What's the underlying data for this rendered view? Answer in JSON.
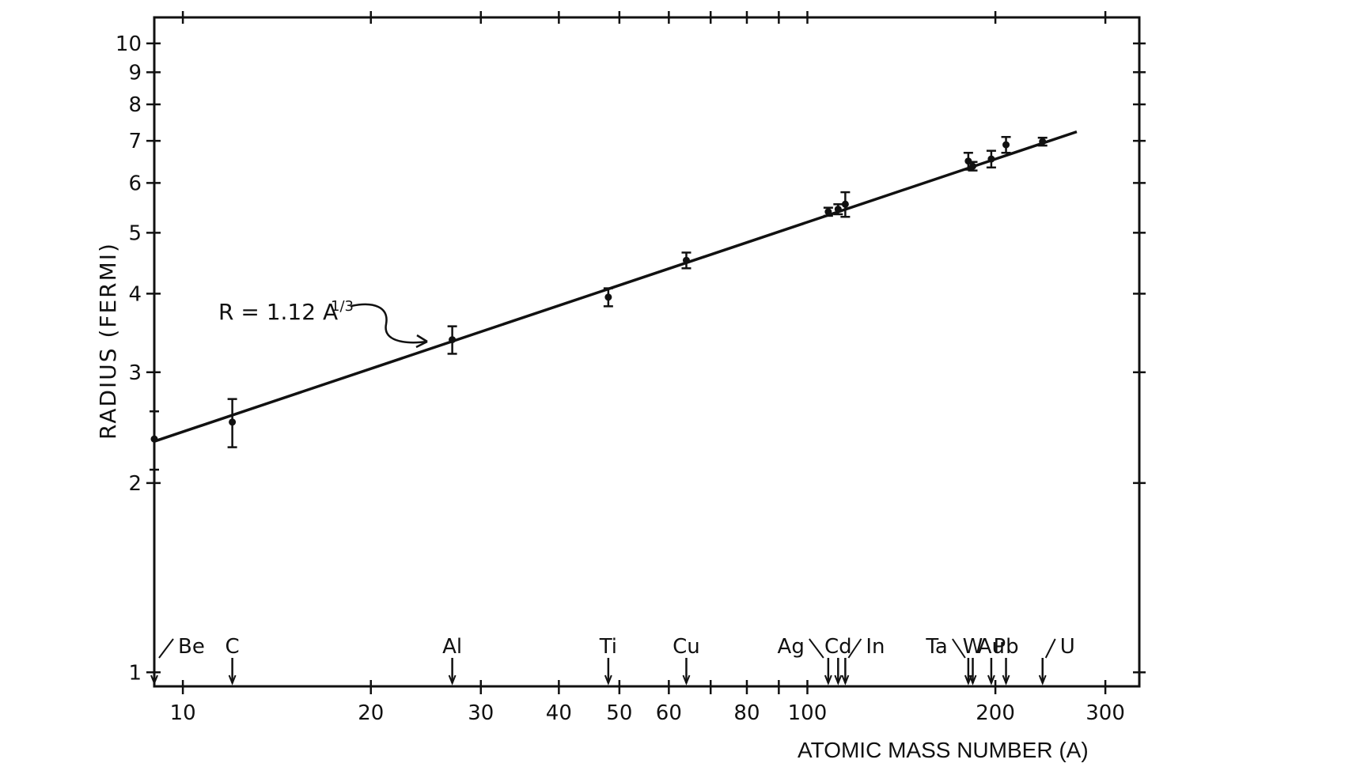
{
  "chart_data": {
    "type": "scatter",
    "xlabel": "ATOMIC MASS NUMBER (A)",
    "ylabel": "RADIUS (FERMI)",
    "x_scale": "log",
    "y_scale": "log",
    "xlim": [
      9,
      340
    ],
    "ylim": [
      0.95,
      11
    ],
    "x_ticks": [
      10,
      20,
      30,
      40,
      50,
      60,
      80,
      100,
      200,
      300
    ],
    "x_minor_ticks": [
      70,
      90
    ],
    "y_ticks": [
      1,
      2,
      3,
      4,
      5,
      6,
      7,
      8,
      9,
      10
    ],
    "grid": false,
    "fit_line": {
      "label": "R = 1.12 A",
      "label_sup": "1/3",
      "coefficient": 1.12,
      "exponent": 0.3333,
      "x_range": [
        9,
        270
      ]
    },
    "series": [
      {
        "x": [
          9,
          12,
          27,
          48,
          64,
          108,
          112,
          115,
          181,
          184,
          197,
          208,
          238
        ],
        "y": [
          2.35,
          2.5,
          3.38,
          3.95,
          4.52,
          5.4,
          5.45,
          5.55,
          6.5,
          6.38,
          6.55,
          6.9,
          6.98
        ],
        "err": [
          0.25,
          0.22,
          0.17,
          0.13,
          0.13,
          0.08,
          0.1,
          0.25,
          0.2,
          0.1,
          0.2,
          0.2,
          0.1
        ]
      }
    ],
    "element_markers": [
      {
        "name": "Be",
        "A": 9
      },
      {
        "name": "C",
        "A": 12
      },
      {
        "name": "Al",
        "A": 27
      },
      {
        "name": "Ti",
        "A": 48
      },
      {
        "name": "Cu",
        "A": 64
      },
      {
        "name": "Ag",
        "A": 108
      },
      {
        "name": "Cd",
        "A": 112
      },
      {
        "name": "In",
        "A": 115
      },
      {
        "name": "Ta",
        "A": 181
      },
      {
        "name": "W",
        "A": 184
      },
      {
        "name": "Au",
        "A": 197
      },
      {
        "name": "Pb",
        "A": 208
      },
      {
        "name": "U",
        "A": 238
      }
    ]
  }
}
